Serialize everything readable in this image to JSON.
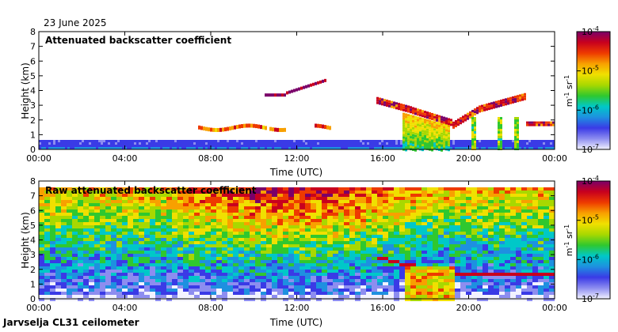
{
  "date": "23 June 2025",
  "footer": "Jarvselja CL31 ceilometer",
  "colors": {
    "colormap": [
      "#f2f2ff",
      "#8d8df0",
      "#3a3ae6",
      "#1e90e0",
      "#00c8c8",
      "#2fc82f",
      "#a8d800",
      "#f0e000",
      "#f8a000",
      "#ee3a00",
      "#c8001e",
      "#7a0069"
    ],
    "attenuated_background": "#ffffff",
    "raw_noise_low": "#3a3ae6"
  },
  "chart_data": [
    {
      "type": "heatmap",
      "title": "Attenuated backscatter coefficient",
      "xlabel": "Time (UTC)",
      "ylabel": "Height (km)",
      "xlim": [
        0,
        24
      ],
      "ylim": [
        0,
        8
      ],
      "xticks": [
        "00:00",
        "04:00",
        "08:00",
        "12:00",
        "16:00",
        "20:00",
        "00:00"
      ],
      "yticks": [
        0,
        1,
        2,
        3,
        4,
        5,
        6,
        7,
        8
      ],
      "colorbar": {
        "label": "m-1 sr-1",
        "scale": "log",
        "range": [
          1e-07,
          0.0001
        ],
        "ticks": [
          {
            "base": "10",
            "exp": "-4"
          },
          {
            "base": "10",
            "exp": "-5"
          },
          {
            "base": "10",
            "exp": "-6"
          },
          {
            "base": "10",
            "exp": "-7"
          }
        ]
      },
      "features": [
        {
          "name": "boundary layer",
          "t": [
            0,
            24
          ],
          "h": [
            0,
            0.45
          ],
          "level": 0.3
        },
        {
          "name": "cloud base 08-14",
          "t": [
            7.2,
            13.8
          ],
          "h": [
            1.3,
            1.8
          ],
          "level": 0.7
        },
        {
          "name": "mid cloud",
          "t": [
            10.5,
            13.5
          ],
          "h": [
            3.6,
            4.8
          ],
          "level": 0.95
        },
        {
          "name": "cloud 16-24",
          "t": [
            15.6,
            24
          ],
          "h": [
            1.5,
            3.8
          ],
          "level": 0.85
        },
        {
          "name": "precipitation",
          "t": [
            16.8,
            19.2
          ],
          "h": [
            0,
            2.6
          ],
          "level": 0.5
        }
      ]
    },
    {
      "type": "heatmap",
      "title": "Raw attenuated backscatter coefficient",
      "xlabel": "Time (UTC)",
      "ylabel": "Height (km)",
      "xlim": [
        0,
        24
      ],
      "ylim": [
        0,
        8
      ],
      "xticks": [
        "00:00",
        "04:00",
        "08:00",
        "12:00",
        "16:00",
        "20:00",
        "00:00"
      ],
      "yticks": [
        0,
        1,
        2,
        3,
        4,
        5,
        6,
        7,
        8
      ],
      "colorbar": {
        "label": "m-1 sr-1",
        "scale": "log",
        "range": [
          1e-07,
          0.0001
        ],
        "ticks": [
          {
            "base": "10",
            "exp": "-4"
          },
          {
            "base": "10",
            "exp": "-5"
          },
          {
            "base": "10",
            "exp": "-6"
          },
          {
            "base": "10",
            "exp": "-7"
          }
        ]
      },
      "features": [
        {
          "name": "noise increases with height",
          "t": [
            0,
            24
          ],
          "h": [
            0,
            7.6
          ],
          "level": 0.6
        },
        {
          "name": "cloud 16-24",
          "t": [
            15.6,
            24
          ],
          "h": [
            1.5,
            3.8
          ],
          "level": 0.85
        },
        {
          "name": "precipitation",
          "t": [
            16.8,
            19.2
          ],
          "h": [
            0,
            2.6
          ],
          "level": 0.5
        }
      ]
    }
  ]
}
